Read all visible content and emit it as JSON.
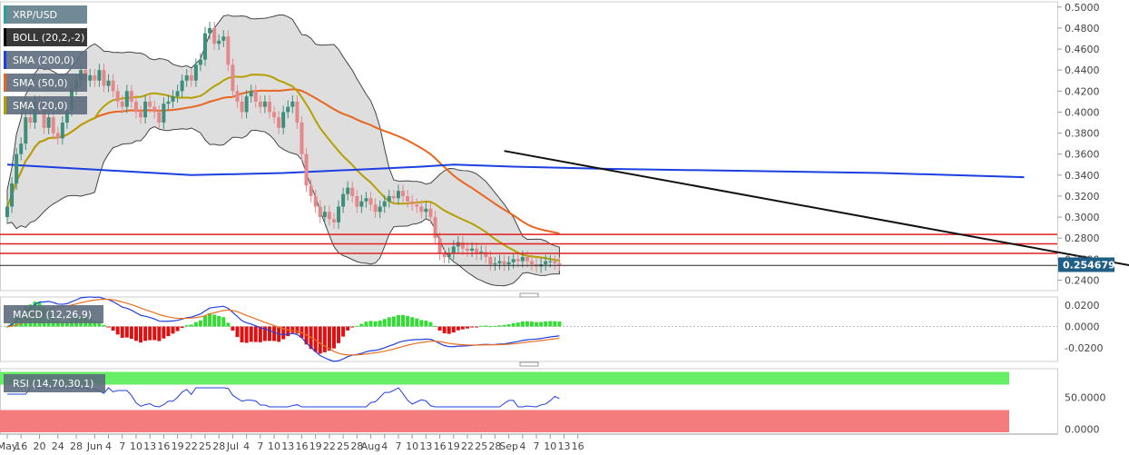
{
  "chart_data": {
    "type": "candlestick",
    "symbol": "XRP/USD",
    "last_price": "0.254679",
    "indicators": {
      "boll": "BOLL (20,2,-2)",
      "sma200": "SMA (200,0)",
      "sma50": "SMA (50,0)",
      "sma20": "SMA (20,0)",
      "macd": "MACD (12,26,9)",
      "rsi": "RSI (14,70,30,1)"
    },
    "price_axis": {
      "min": 0.23,
      "max": 0.505,
      "ticks": [
        "0.5000",
        "0.4800",
        "0.4600",
        "0.4400",
        "0.4200",
        "0.4000",
        "0.3800",
        "0.3600",
        "0.3400",
        "0.3200",
        "0.3000",
        "0.2800",
        "0.2600",
        "0.2400"
      ]
    },
    "macd_axis": {
      "min": -0.03,
      "max": 0.025,
      "ticks": [
        "0.0200",
        "0.0000",
        "-0.0200"
      ]
    },
    "rsi_axis": {
      "min": -5,
      "max": 95,
      "ticks": [
        "50.0000",
        "0.0000"
      ]
    },
    "x_axis": {
      "labels": [
        "May",
        "16",
        "20",
        "24",
        "28",
        "Jun",
        "4",
        "7",
        "10",
        "13",
        "16",
        "19",
        "22",
        "25",
        "28",
        "Jul",
        "4",
        "7",
        "10",
        "13",
        "16",
        "19",
        "22",
        "25",
        "28",
        "Aug",
        "4",
        "7",
        "10",
        "13",
        "16",
        "19",
        "22",
        "25",
        "28",
        "Sep",
        "4",
        "7",
        "10",
        "13",
        "16"
      ],
      "label_days": [
        0,
        3,
        7,
        11,
        15,
        19,
        22,
        25,
        28,
        31,
        34,
        37,
        40,
        43,
        46,
        49,
        52,
        55,
        58,
        61,
        64,
        67,
        70,
        73,
        76,
        79,
        82,
        85,
        88,
        91,
        94,
        97,
        100,
        103,
        106,
        109,
        112,
        115,
        118,
        121,
        124
      ]
    },
    "closes": [
      0.31,
      0.332,
      0.36,
      0.37,
      0.395,
      0.39,
      0.41,
      0.405,
      0.385,
      0.395,
      0.38,
      0.375,
      0.39,
      0.402,
      0.422,
      0.43,
      0.44,
      0.43,
      0.435,
      0.43,
      0.44,
      0.425,
      0.43,
      0.42,
      0.41,
      0.405,
      0.42,
      0.41,
      0.4,
      0.395,
      0.41,
      0.405,
      0.4,
      0.39,
      0.408,
      0.41,
      0.415,
      0.42,
      0.43,
      0.435,
      0.43,
      0.445,
      0.45,
      0.475,
      0.48,
      0.465,
      0.468,
      0.472,
      0.445,
      0.42,
      0.41,
      0.4,
      0.415,
      0.42,
      0.41,
      0.405,
      0.41,
      0.4,
      0.395,
      0.385,
      0.4,
      0.405,
      0.41,
      0.39,
      0.36,
      0.33,
      0.32,
      0.31,
      0.3,
      0.305,
      0.298,
      0.295,
      0.31,
      0.322,
      0.328,
      0.32,
      0.31,
      0.315,
      0.318,
      0.312,
      0.305,
      0.31,
      0.315,
      0.32,
      0.318,
      0.325,
      0.32,
      0.315,
      0.312,
      0.31,
      0.305,
      0.308,
      0.3,
      0.28,
      0.265,
      0.262,
      0.265,
      0.272,
      0.276,
      0.27,
      0.268,
      0.27,
      0.265,
      0.267,
      0.262,
      0.255,
      0.256,
      0.258,
      0.255,
      0.257,
      0.26,
      0.258,
      0.262,
      0.258,
      0.255,
      0.253,
      0.255,
      0.258,
      0.258,
      0.256,
      0.254679
    ],
    "sma200_curve": [
      [
        0,
        0.35
      ],
      [
        20,
        0.345
      ],
      [
        40,
        0.34
      ],
      [
        60,
        0.342
      ],
      [
        80,
        0.346
      ],
      [
        90,
        0.348
      ],
      [
        97,
        0.35
      ],
      [
        110,
        0.348
      ],
      [
        130,
        0.346
      ],
      [
        160,
        0.344
      ],
      [
        190,
        0.342
      ],
      [
        221,
        0.338
      ]
    ],
    "trendline": [
      [
        108,
        0.363
      ],
      [
        249,
        0.25
      ]
    ],
    "horizontal_levels": [
      0.2835,
      0.2745,
      0.2655,
      0.254
    ]
  }
}
